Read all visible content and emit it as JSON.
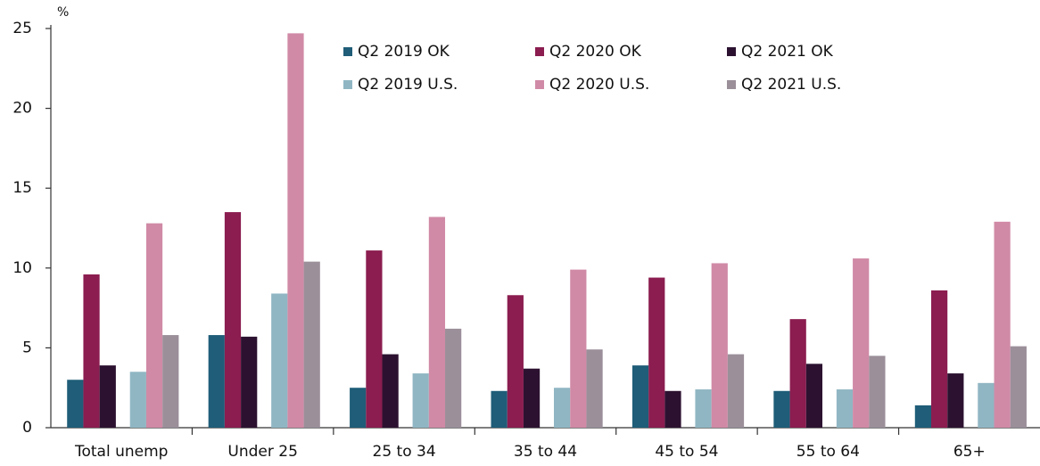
{
  "chart_data": {
    "type": "bar",
    "y_unit": "%",
    "categories": [
      "Total unemp",
      "Under 25",
      "25 to 34",
      "35 to 44",
      "45 to 54",
      "55 to 64",
      "65+"
    ],
    "series": [
      {
        "name": "Q2 2019 OK",
        "color": "#1f5d78",
        "values": [
          3.0,
          5.8,
          2.5,
          2.3,
          3.9,
          2.3,
          1.4
        ]
      },
      {
        "name": "Q2 2020 OK",
        "color": "#8b1d50",
        "values": [
          9.6,
          13.5,
          11.1,
          8.3,
          9.4,
          6.8,
          8.6
        ]
      },
      {
        "name": "Q2 2021 OK",
        "color": "#2c1230",
        "values": [
          3.9,
          5.7,
          4.6,
          3.7,
          2.3,
          4.0,
          3.4
        ]
      },
      {
        "name": "Q2 2019 U.S.",
        "color": "#90b6c3",
        "values": [
          3.5,
          8.4,
          3.4,
          2.5,
          2.4,
          2.4,
          2.8
        ]
      },
      {
        "name": "Q2 2020 U.S.",
        "color": "#d08aa6",
        "values": [
          12.8,
          24.7,
          13.2,
          9.9,
          10.3,
          10.6,
          12.9
        ]
      },
      {
        "name": "Q2 2021 U.S.",
        "color": "#9b8f9a",
        "values": [
          5.8,
          10.4,
          6.2,
          4.9,
          4.6,
          4.5,
          5.1
        ]
      }
    ],
    "ylim": [
      0,
      25
    ],
    "yticks": [
      0,
      5,
      10,
      15,
      20,
      25
    ],
    "grid": false
  }
}
